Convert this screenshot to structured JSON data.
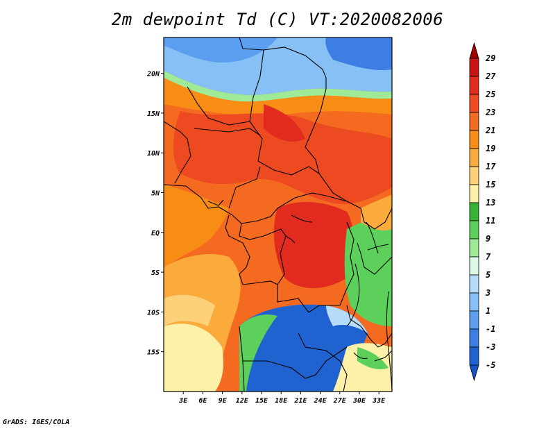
{
  "title": "2m dewpoint Td (C) VT:2020082006",
  "footer": "GrADS: IGES/COLA",
  "map": {
    "lat_range": [
      -20,
      24.5
    ],
    "lon_range": [
      0,
      35
    ],
    "lat_ticks": [
      {
        "value": 20,
        "label": "20N"
      },
      {
        "value": 15,
        "label": "15N"
      },
      {
        "value": 10,
        "label": "10N"
      },
      {
        "value": 5,
        "label": "5N"
      },
      {
        "value": 0,
        "label": "EQ"
      },
      {
        "value": -5,
        "label": "5S"
      },
      {
        "value": -10,
        "label": "10S"
      },
      {
        "value": -15,
        "label": "15S"
      }
    ],
    "lon_ticks": [
      {
        "value": 3,
        "label": "3E"
      },
      {
        "value": 6,
        "label": "6E"
      },
      {
        "value": 9,
        "label": "9E"
      },
      {
        "value": 12,
        "label": "12E"
      },
      {
        "value": 15,
        "label": "15E"
      },
      {
        "value": 18,
        "label": "18E"
      },
      {
        "value": 21,
        "label": "21E"
      },
      {
        "value": 24,
        "label": "24E"
      },
      {
        "value": 27,
        "label": "27E"
      },
      {
        "value": 30,
        "label": "30E"
      },
      {
        "value": 33,
        "label": "33E"
      }
    ]
  },
  "colorbar": {
    "labels": [
      "29",
      "27",
      "25",
      "23",
      "21",
      "19",
      "17",
      "15",
      "13",
      "11",
      "9",
      "7",
      "5",
      "3",
      "1",
      "-1",
      "-3",
      "-5"
    ],
    "colors": [
      "#a00000",
      "#c81414",
      "#e12b1e",
      "#ee4a22",
      "#f46a20",
      "#f88d16",
      "#fbaa3c",
      "#fdd07a",
      "#fdf0a8",
      "#36b234",
      "#5cd05a",
      "#9eea96",
      "#ddf8e6",
      "#b6dcfa",
      "#86c0f4",
      "#5c9ef0",
      "#3c7ee4",
      "#2063d0",
      "#1a52c0"
    ]
  }
}
